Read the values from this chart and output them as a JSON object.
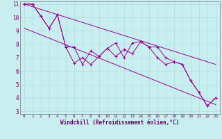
{
  "xlabel": "Windchill (Refroidissement éolien,°C)",
  "bg_color": "#c8eef0",
  "grid_color": "#b0dde0",
  "line_color": "#990099",
  "xlim": [
    -0.5,
    23.5
  ],
  "ylim": [
    2.8,
    11.2
  ],
  "xticks": [
    0,
    1,
    2,
    3,
    4,
    5,
    6,
    7,
    8,
    9,
    10,
    11,
    12,
    13,
    14,
    15,
    16,
    17,
    18,
    19,
    20,
    21,
    22,
    23
  ],
  "yticks": [
    3,
    4,
    5,
    6,
    7,
    8,
    9,
    10,
    11
  ],
  "series1_x": [
    0,
    1,
    2,
    3,
    4,
    5,
    6,
    7,
    8,
    9,
    10,
    11,
    12,
    13,
    14,
    15,
    16,
    17,
    18,
    19,
    20,
    21,
    22,
    23
  ],
  "series1_y": [
    11,
    11,
    10.1,
    9.2,
    10.2,
    7.8,
    7.8,
    6.5,
    7.5,
    7.1,
    7.7,
    8.1,
    7.0,
    8.1,
    8.2,
    7.8,
    7.8,
    7.0,
    6.7,
    6.5,
    5.3,
    4.4,
    3.4,
    4.0
  ],
  "series2_x": [
    0,
    1,
    2,
    3,
    4,
    5,
    6,
    7,
    8,
    9,
    10,
    11,
    12,
    13,
    14,
    15,
    16,
    17,
    18,
    19,
    20,
    21,
    22,
    23
  ],
  "series2_y": [
    11,
    11,
    10.1,
    9.2,
    10.2,
    7.8,
    6.6,
    7.0,
    6.5,
    7.1,
    7.7,
    7.1,
    7.6,
    7.3,
    8.2,
    7.8,
    7.0,
    6.5,
    6.7,
    6.5,
    5.3,
    4.4,
    3.4,
    4.0
  ],
  "line1_x": [
    0,
    23
  ],
  "line1_y": [
    11.0,
    6.5
  ],
  "line2_x": [
    0,
    23
  ],
  "line2_y": [
    9.2,
    3.5
  ]
}
